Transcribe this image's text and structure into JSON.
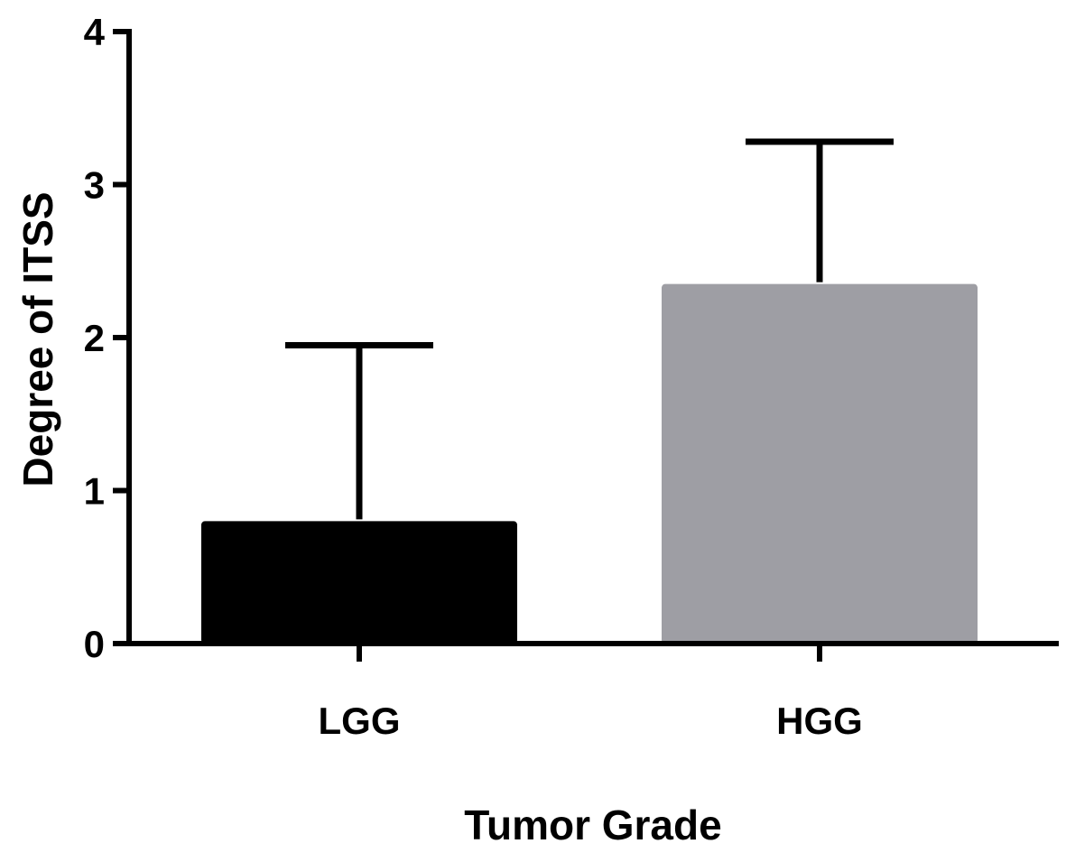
{
  "chart_data": {
    "type": "bar",
    "title": "",
    "xlabel": "Tumor Grade",
    "ylabel": "Degree of ITSS",
    "categories": [
      "LGG",
      "HGG"
    ],
    "values": [
      0.8,
      2.35
    ],
    "error_upper": [
      1.95,
      3.28
    ],
    "bar_colors": [
      "#000000",
      "#9e9ea4"
    ],
    "ylim": [
      0,
      4
    ],
    "yticks": [
      "0",
      "1",
      "2",
      "3",
      "4"
    ],
    "grid": false,
    "legend": "none"
  }
}
